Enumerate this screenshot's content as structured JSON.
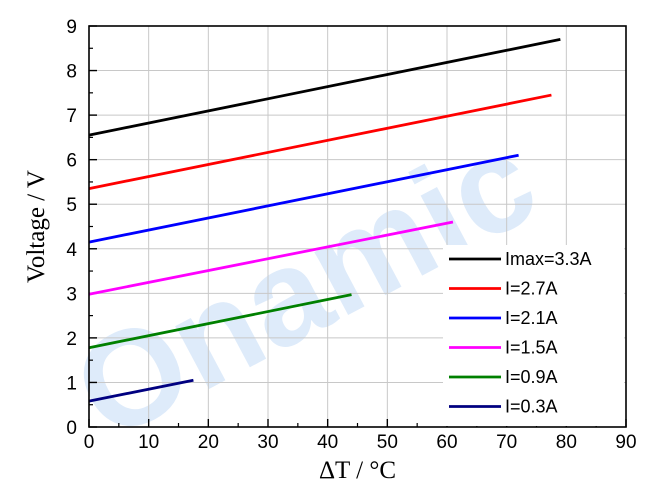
{
  "watermark": "Onamic",
  "chart_data": {
    "type": "line",
    "xlabel": "ΔT / °C",
    "ylabel": "Voltage / V",
    "xlim": [
      0,
      90
    ],
    "ylim": [
      0,
      9
    ],
    "xticks": [
      0,
      10,
      20,
      30,
      40,
      50,
      60,
      70,
      80,
      90
    ],
    "yticks": [
      0,
      1,
      2,
      3,
      4,
      5,
      6,
      7,
      8,
      9
    ],
    "grid": true,
    "legend_position": "bottom-right",
    "series": [
      {
        "name": "Imax=3.3A",
        "color": "#000000",
        "x": [
          0,
          79
        ],
        "y": [
          6.55,
          8.7
        ]
      },
      {
        "name": "I=2.7A",
        "color": "#ff0000",
        "x": [
          0,
          77.5
        ],
        "y": [
          5.35,
          7.45
        ]
      },
      {
        "name": "I=2.1A",
        "color": "#0000ff",
        "x": [
          0,
          72
        ],
        "y": [
          4.15,
          6.1
        ]
      },
      {
        "name": "I=1.5A",
        "color": "#ff00ff",
        "x": [
          0,
          61
        ],
        "y": [
          2.98,
          4.6
        ]
      },
      {
        "name": "I=0.9A",
        "color": "#008000",
        "x": [
          0,
          44
        ],
        "y": [
          1.78,
          2.97
        ]
      },
      {
        "name": "I=0.3A",
        "color": "#000080",
        "x": [
          0,
          17.5
        ],
        "y": [
          0.58,
          1.05
        ]
      }
    ]
  }
}
